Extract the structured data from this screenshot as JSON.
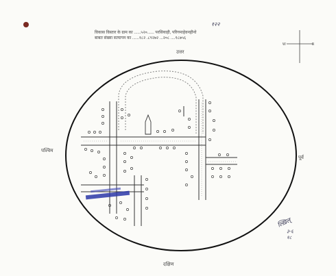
{
  "header": {
    "line1_label": "विकास विस्तार के ग्राम का",
    "line1_value": "......५२०...... परसियाही, परिगमाहेवनहीनो",
    "line1_overwrite": "१२२",
    "line2_label": "बाबत संख्या सत्यापन का",
    "line2_value": "......१८२ .८९२७२ ...२०८ ....१८७५६"
  },
  "directions": {
    "north": "उत्तर",
    "south": "दक्षिण",
    "east": "पूर्व",
    "west": "पश्चिम"
  },
  "signature_note": "३-६\n१८"
}
